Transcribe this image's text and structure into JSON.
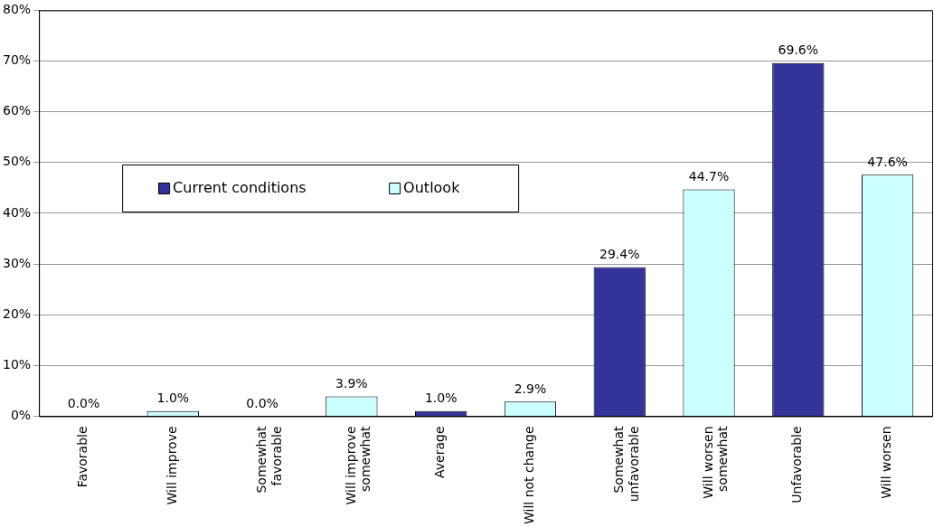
{
  "chart_data": {
    "type": "bar",
    "categories": [
      "Favorable",
      "Will improve",
      "Somewhat favorable",
      "Will improve somewhat",
      "Average",
      "Will not change",
      "Somewhat unfavorable",
      "Will worsen somewhat",
      "Unfavorable",
      "Will worsen"
    ],
    "series": [
      {
        "name": "Current conditions",
        "color": "#333399",
        "values": [
          0.0,
          null,
          0.0,
          null,
          1.0,
          null,
          29.4,
          null,
          69.6,
          null
        ],
        "value_labels": [
          "0.0%",
          null,
          "0.0%",
          null,
          "1.0%",
          null,
          "29.4%",
          null,
          "69.6%",
          null
        ]
      },
      {
        "name": "Outlook",
        "color": "#ccffff",
        "values": [
          null,
          1.0,
          null,
          3.9,
          null,
          2.9,
          null,
          44.7,
          null,
          47.6
        ],
        "value_labels": [
          null,
          "1.0%",
          null,
          "3.9%",
          null,
          "2.9%",
          null,
          "44.7%",
          null,
          "47.6%"
        ]
      }
    ],
    "ylim": [
      0,
      80
    ],
    "yticks": [
      {
        "value": 0,
        "label": "0%"
      },
      {
        "value": 10,
        "label": "10%"
      },
      {
        "value": 20,
        "label": "20%"
      },
      {
        "value": 30,
        "label": "30%"
      },
      {
        "value": 40,
        "label": "40%"
      },
      {
        "value": 50,
        "label": "50%"
      },
      {
        "value": 60,
        "label": "60%"
      },
      {
        "value": 70,
        "label": "70%"
      },
      {
        "value": 80,
        "label": "80%"
      }
    ],
    "grid": "y",
    "legend": "left"
  }
}
